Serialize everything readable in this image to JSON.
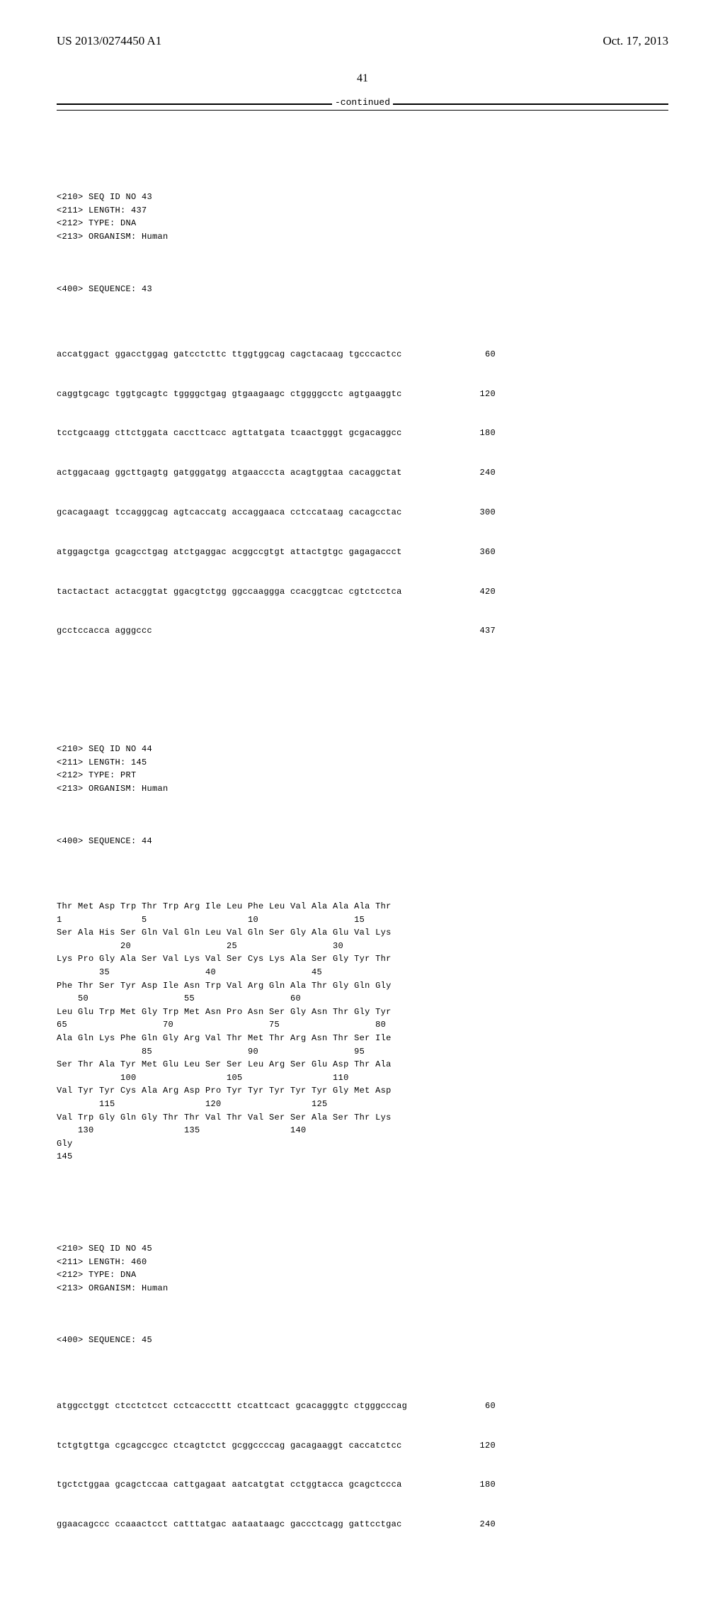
{
  "header": {
    "pub_number": "US 2013/0274450 A1",
    "pub_date": "Oct. 17, 2013"
  },
  "page_number": "41",
  "continued_label": "-continued",
  "seq43": {
    "meta": [
      "<210> SEQ ID NO 43",
      "<211> LENGTH: 437",
      "<212> TYPE: DNA",
      "<213> ORGANISM: Human"
    ],
    "seq_header": "<400> SEQUENCE: 43",
    "rows": [
      {
        "seq": "accatggact ggacctggag gatcctcttc ttggtggcag cagctacaag tgcccactcc",
        "pos": "60"
      },
      {
        "seq": "caggtgcagc tggtgcagtc tggggctgag gtgaagaagc ctggggcctc agtgaaggtc",
        "pos": "120"
      },
      {
        "seq": "tcctgcaagg cttctggata caccttcacc agttatgata tcaactgggt gcgacaggcc",
        "pos": "180"
      },
      {
        "seq": "actggacaag ggcttgagtg gatgggatgg atgaacccta acagtggtaa cacaggctat",
        "pos": "240"
      },
      {
        "seq": "gcacagaagt tccagggcag agtcaccatg accaggaaca cctccataag cacagcctac",
        "pos": "300"
      },
      {
        "seq": "atggagctga gcagcctgag atctgaggac acggccgtgt attactgtgc gagagaccct",
        "pos": "360"
      },
      {
        "seq": "tactactact actacggtat ggacgtctgg ggccaaggga ccacggtcac cgtctcctca",
        "pos": "420"
      },
      {
        "seq": "gcctccacca agggccc",
        "pos": "437"
      }
    ]
  },
  "seq44": {
    "meta": [
      "<210> SEQ ID NO 44",
      "<211> LENGTH: 145",
      "<212> TYPE: PRT",
      "<213> ORGANISM: Human"
    ],
    "seq_header": "<400> SEQUENCE: 44",
    "rows": [
      "Thr Met Asp Trp Thr Trp Arg Ile Leu Phe Leu Val Ala Ala Ala Thr",
      "1               5                   10                  15",
      "",
      "Ser Ala His Ser Gln Val Gln Leu Val Gln Ser Gly Ala Glu Val Lys",
      "            20                  25                  30",
      "",
      "Lys Pro Gly Ala Ser Val Lys Val Ser Cys Lys Ala Ser Gly Tyr Thr",
      "        35                  40                  45",
      "",
      "Phe Thr Ser Tyr Asp Ile Asn Trp Val Arg Gln Ala Thr Gly Gln Gly",
      "    50                  55                  60",
      "",
      "Leu Glu Trp Met Gly Trp Met Asn Pro Asn Ser Gly Asn Thr Gly Tyr",
      "65                  70                  75                  80",
      "",
      "Ala Gln Lys Phe Gln Gly Arg Val Thr Met Thr Arg Asn Thr Ser Ile",
      "                85                  90                  95",
      "",
      "Ser Thr Ala Tyr Met Glu Leu Ser Ser Leu Arg Ser Glu Asp Thr Ala",
      "            100                 105                 110",
      "",
      "Val Tyr Tyr Cys Ala Arg Asp Pro Tyr Tyr Tyr Tyr Tyr Gly Met Asp",
      "        115                 120                 125",
      "",
      "Val Trp Gly Gln Gly Thr Thr Val Thr Val Ser Ser Ala Ser Thr Lys",
      "    130                 135                 140",
      "",
      "Gly",
      "145"
    ]
  },
  "seq45": {
    "meta": [
      "<210> SEQ ID NO 45",
      "<211> LENGTH: 460",
      "<212> TYPE: DNA",
      "<213> ORGANISM: Human"
    ],
    "seq_header": "<400> SEQUENCE: 45",
    "rows": [
      {
        "seq": "atggcctggt ctcctctcct cctcacccttt ctcattcact gcacagggtc ctgggcccag",
        "pos": "60"
      },
      {
        "seq": "tctgtgttga cgcagccgcc ctcagtctct gcggccccag gacagaaggt caccatctcc",
        "pos": "120"
      },
      {
        "seq": "tgctctggaa gcagctccaa cattgagaat aatcatgtat cctggtacca gcagctccca",
        "pos": "180"
      },
      {
        "seq": "ggaacagccc ccaaactcct catttatgac aataataagc gaccctcagg gattcctgac",
        "pos": "240"
      }
    ]
  }
}
